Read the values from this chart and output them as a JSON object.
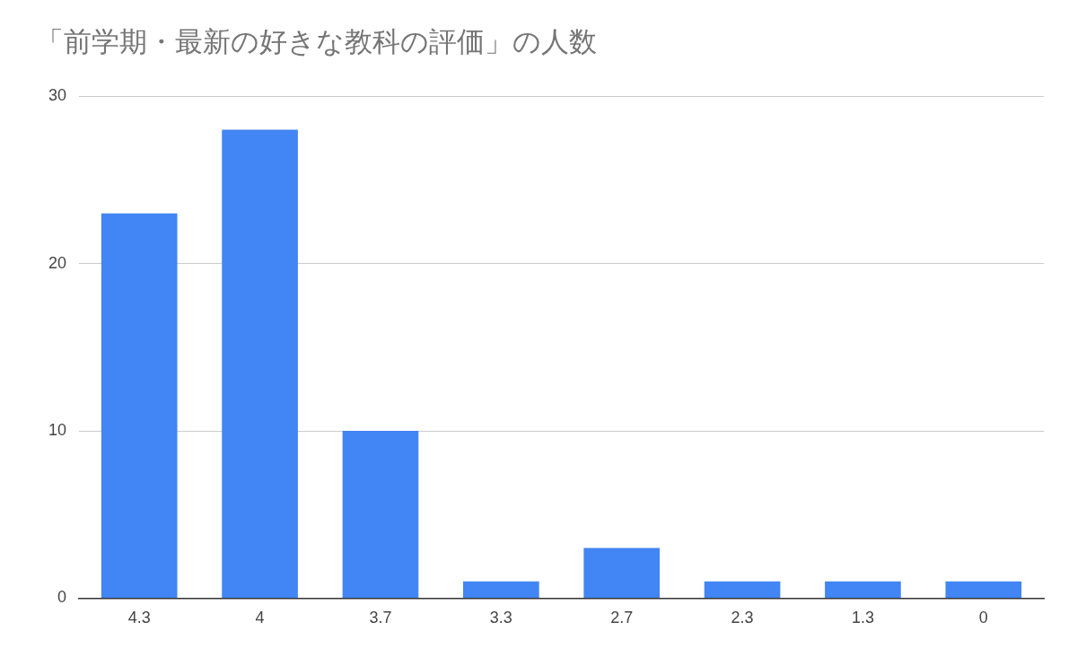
{
  "chart_data": {
    "type": "bar",
    "title": "「前学期・最新の好きな教科の評価」の人数",
    "categories": [
      "4.3",
      "4",
      "3.7",
      "3.3",
      "2.7",
      "2.3",
      "1.3",
      "0"
    ],
    "values": [
      23,
      28,
      10,
      1,
      3,
      1,
      1,
      1
    ],
    "color": "#4285f4",
    "ylim": [
      0,
      30
    ],
    "yticks": [
      0,
      10,
      20,
      30
    ],
    "grid": "y",
    "legend": false
  }
}
